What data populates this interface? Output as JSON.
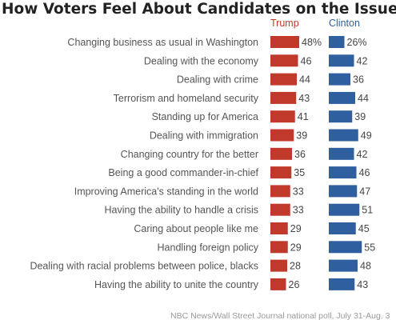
{
  "title": "How Voters Feel About Candidates on the Issues",
  "source": "NBC News/Wall Street Journal national poll, July 31-Aug. 3",
  "colors": {
    "trump": "#c0392b",
    "clinton": "#2f5f9e"
  },
  "chart_data": {
    "type": "bar",
    "title": "How Voters Feel About Candidates on the Issues",
    "orientation": "horizontal",
    "value_suffix_first_row": "%",
    "categories": [
      "Changing business as usual in Washington",
      "Dealing with the economy",
      "Dealing with crime",
      "Terrorism and homeland security",
      "Standing up for America",
      "Dealing with immigration",
      "Changing country for the better",
      "Being a good commander-in-chief",
      "Improving America's standing in the world",
      "Having the ability to handle a crisis",
      "Caring about people like me",
      "Handling foreign policy",
      "Dealing with racial problems between police, blacks",
      "Having the ability to unite the country"
    ],
    "series": [
      {
        "name": "Trump",
        "color": "#c0392b",
        "values": [
          48,
          46,
          44,
          43,
          41,
          39,
          36,
          35,
          33,
          33,
          29,
          29,
          28,
          26
        ]
      },
      {
        "name": "Clinton",
        "color": "#2f5f9e",
        "values": [
          26,
          42,
          36,
          44,
          39,
          49,
          42,
          46,
          47,
          51,
          45,
          55,
          48,
          43
        ]
      }
    ]
  }
}
